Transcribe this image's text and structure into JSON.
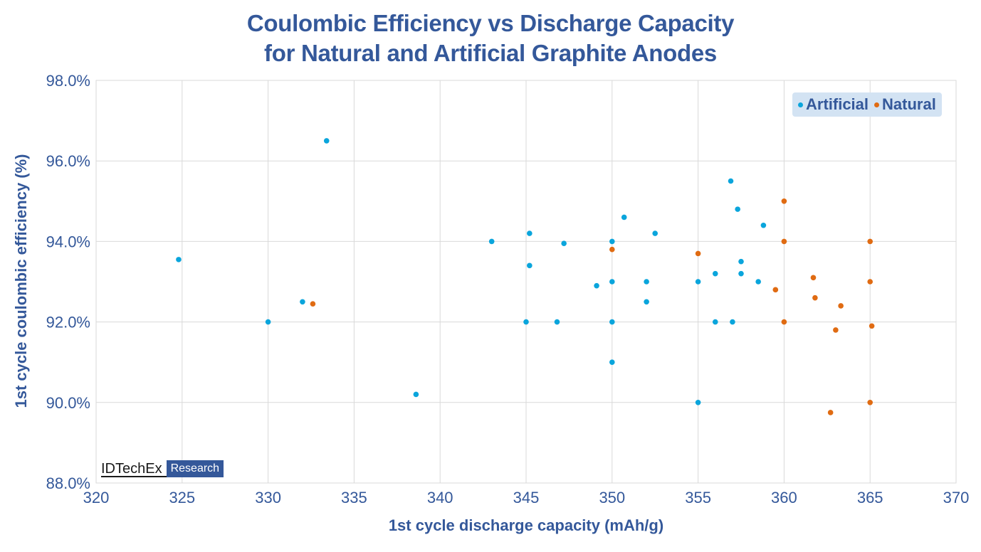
{
  "colors": {
    "title": "#34589a",
    "artificial": "#0aa5dc",
    "natural": "#e06b12",
    "grid": "#d9d9d9",
    "legend_bg": "#d3e3f3"
  },
  "logo": {
    "main": "IDTechEx",
    "sub": "Research"
  },
  "chart_data": {
    "type": "scatter",
    "title_lines": [
      "Coulombic Efficiency vs Discharge Capacity",
      "for Natural and Artificial Graphite Anodes"
    ],
    "xlabel": "1st cycle discharge capacity (mAh/g)",
    "ylabel": "1st cycle coulombic efficiency (%)",
    "xlim": [
      320,
      370
    ],
    "ylim": [
      88.0,
      98.0
    ],
    "xticks": [
      320,
      325,
      330,
      335,
      340,
      345,
      350,
      355,
      360,
      365,
      370
    ],
    "yticks": [
      88.0,
      90.0,
      92.0,
      94.0,
      96.0,
      98.0
    ],
    "xtick_labels": [
      "320",
      "325",
      "330",
      "335",
      "340",
      "345",
      "350",
      "355",
      "360",
      "365",
      "370"
    ],
    "ytick_labels": [
      "88.0%",
      "90.0%",
      "92.0%",
      "94.0%",
      "96.0%",
      "98.0%"
    ],
    "grid": true,
    "legend_position": "top-right",
    "series": [
      {
        "name": "Artificial",
        "color": "#0aa5dc",
        "points": [
          [
            324.8,
            93.55
          ],
          [
            330.0,
            92.0
          ],
          [
            332.0,
            92.5
          ],
          [
            333.4,
            96.5
          ],
          [
            338.6,
            90.2
          ],
          [
            343.0,
            94.0
          ],
          [
            345.0,
            92.0
          ],
          [
            345.2,
            94.2
          ],
          [
            345.2,
            93.4
          ],
          [
            346.8,
            92.0
          ],
          [
            347.2,
            93.95
          ],
          [
            349.1,
            92.9
          ],
          [
            350.0,
            94.0
          ],
          [
            350.0,
            93.0
          ],
          [
            350.0,
            92.0
          ],
          [
            350.0,
            91.0
          ],
          [
            350.7,
            94.6
          ],
          [
            352.0,
            93.0
          ],
          [
            352.0,
            92.5
          ],
          [
            352.5,
            94.2
          ],
          [
            355.0,
            93.0
          ],
          [
            355.0,
            90.0
          ],
          [
            356.0,
            93.2
          ],
          [
            356.0,
            92.0
          ],
          [
            356.9,
            95.5
          ],
          [
            357.0,
            92.0
          ],
          [
            357.3,
            94.8
          ],
          [
            357.5,
            93.5
          ],
          [
            357.5,
            93.2
          ],
          [
            358.5,
            93.0
          ],
          [
            358.8,
            94.4
          ]
        ]
      },
      {
        "name": "Natural",
        "color": "#e06b12",
        "points": [
          [
            332.6,
            92.45
          ],
          [
            350.0,
            93.8
          ],
          [
            355.0,
            93.7
          ],
          [
            359.5,
            92.8
          ],
          [
            360.0,
            95.0
          ],
          [
            360.0,
            94.0
          ],
          [
            360.0,
            92.0
          ],
          [
            361.7,
            93.1
          ],
          [
            361.8,
            92.6
          ],
          [
            362.7,
            89.75
          ],
          [
            363.0,
            91.8
          ],
          [
            363.3,
            92.4
          ],
          [
            365.0,
            94.0
          ],
          [
            365.0,
            93.0
          ],
          [
            365.1,
            91.9
          ],
          [
            365.0,
            90.0
          ]
        ]
      }
    ]
  }
}
